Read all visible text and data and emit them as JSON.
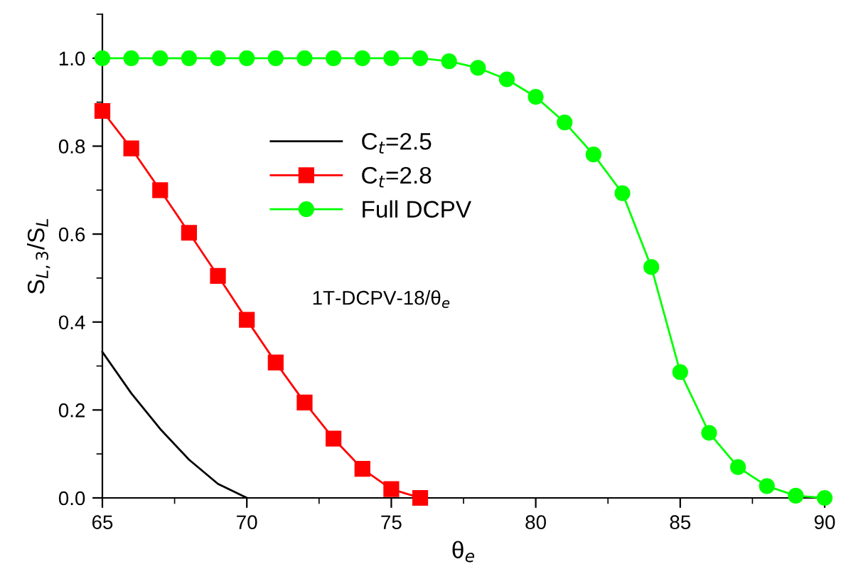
{
  "chart_data": {
    "type": "line",
    "xlabel": "θ$_{e}$",
    "ylabel": "S$_{L,3}$/S$_{L}$",
    "annotations": [
      "1T-DCPV-18/θ$_{e}$"
    ],
    "xlim": [
      65,
      90
    ],
    "xticks": [
      65,
      70,
      75,
      80,
      85,
      90
    ],
    "ylim": [
      0,
      1.1
    ],
    "yticks": [
      {
        "value": 0,
        "label": "0.0"
      },
      0.2,
      0.4,
      0.6,
      0.8,
      {
        "value": 1,
        "label": "1.0"
      }
    ],
    "grid": false,
    "legend": "center",
    "series": [
      {
        "name": "C$_{t}$=2.5",
        "color": "#000000",
        "marker": "none",
        "x": [
          65,
          66,
          67,
          68,
          69,
          70
        ],
        "values": [
          0.332,
          0.238,
          0.157,
          0.087,
          0.032,
          0.0
        ]
      },
      {
        "name": "C$_{t}$=2.8",
        "color": "#ff0000",
        "marker": "square",
        "x": [
          65,
          66,
          67,
          68,
          69,
          70,
          71,
          72,
          73,
          74,
          75,
          76
        ],
        "values": [
          0.88,
          0.795,
          0.7,
          0.603,
          0.505,
          0.405,
          0.308,
          0.217,
          0.135,
          0.066,
          0.02,
          0.0
        ]
      },
      {
        "name": "Full DCPV",
        "color": "#00ff00",
        "marker": "circle",
        "x": [
          65,
          66,
          67,
          68,
          69,
          70,
          71,
          72,
          73,
          74,
          75,
          76,
          77,
          78,
          79,
          80,
          81,
          82,
          83,
          84,
          85,
          86,
          87,
          88,
          89,
          90
        ],
        "values": [
          1.0,
          1.0,
          1.0,
          1.0,
          1.0,
          1.0,
          1.0,
          1.0,
          1.0,
          1.0,
          1.0,
          1.0,
          0.993,
          0.978,
          0.952,
          0.912,
          0.854,
          0.781,
          0.693,
          0.525,
          0.286,
          0.148,
          0.07,
          0.027,
          0.005,
          0.0
        ]
      }
    ]
  }
}
